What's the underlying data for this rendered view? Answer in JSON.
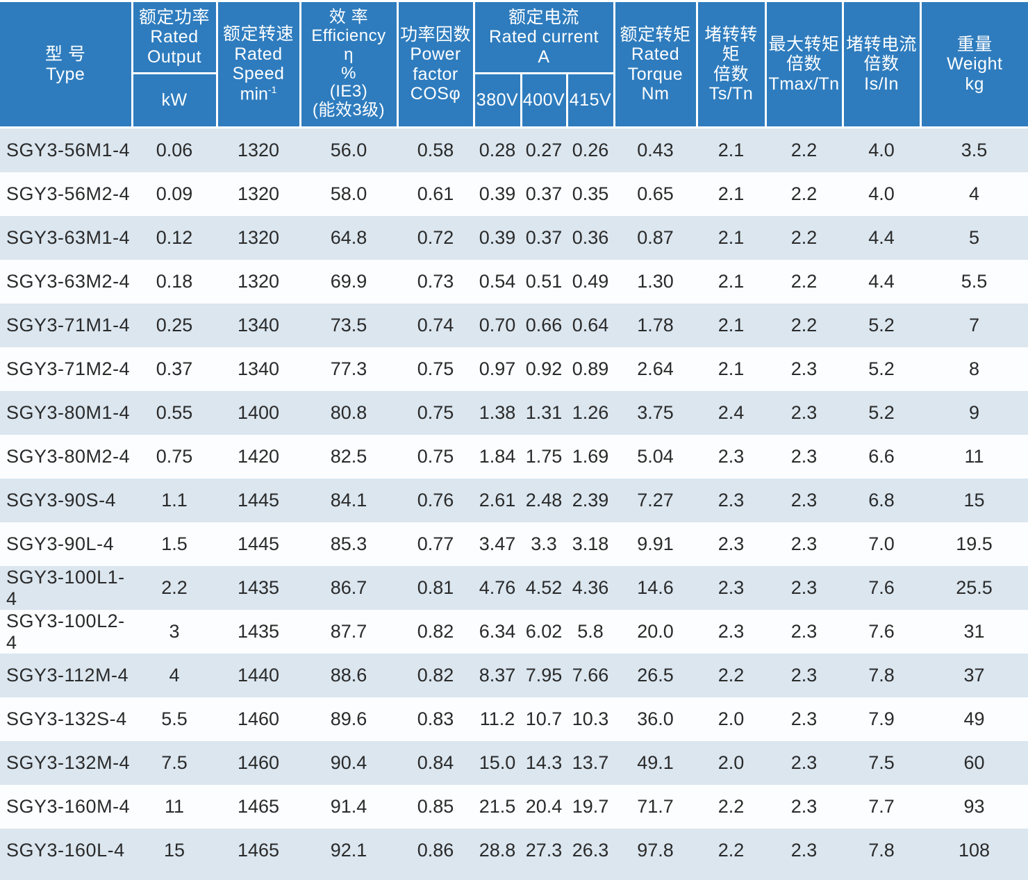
{
  "colors": {
    "header_bg": "#2e7cbe",
    "row_alt": "#dbe6ef",
    "row_base": "#fcfdfe",
    "header_text": "#ffffff",
    "cell_text": "#2a2a2a"
  },
  "table": {
    "header": {
      "type": {
        "lines": [
          "型 号",
          "Type"
        ]
      },
      "rated_output": {
        "top": [
          "额定功率",
          "Rated",
          "Output"
        ],
        "unit": "kW"
      },
      "rated_speed": {
        "lines": [
          "额定转速",
          "Rated",
          "Speed"
        ],
        "unit_base": "min",
        "unit_sup": "-1"
      },
      "efficiency": {
        "lines": [
          "效 率",
          "Efficiency",
          "η",
          "%",
          "(IE3)",
          "(能效3级)"
        ]
      },
      "power_factor": {
        "lines": [
          "功率因数",
          "Power",
          "factor",
          "COSφ"
        ]
      },
      "rated_current": {
        "top": [
          "额定电流",
          "Rated  current",
          "A"
        ],
        "voltages": [
          "380V",
          "400V",
          "415V"
        ]
      },
      "rated_torque": {
        "lines": [
          "额定转矩",
          "Rated",
          "Torque",
          "Nm"
        ]
      },
      "locked_rotor_torque": {
        "lines": [
          "堵转转矩",
          "倍数",
          "Ts/Tn"
        ]
      },
      "max_torque": {
        "lines": [
          "最大转矩",
          "倍数",
          "Tmax/Tn"
        ]
      },
      "locked_rotor_current": {
        "lines": [
          "堵转电流",
          "倍数",
          "Is/In"
        ]
      },
      "weight": {
        "lines": [
          "重量",
          "Weight",
          "kg"
        ]
      }
    },
    "rows": [
      [
        "SGY3-56M1-4",
        "0.06",
        "1320",
        "56.0",
        "0.58",
        "0.28",
        "0.27",
        "0.26",
        "0.43",
        "2.1",
        "2.2",
        "4.0",
        "3.5"
      ],
      [
        "SGY3-56M2-4",
        "0.09",
        "1320",
        "58.0",
        "0.61",
        "0.39",
        "0.37",
        "0.35",
        "0.65",
        "2.1",
        "2.2",
        "4.0",
        "4"
      ],
      [
        "SGY3-63M1-4",
        "0.12",
        "1320",
        "64.8",
        "0.72",
        "0.39",
        "0.37",
        "0.36",
        "0.87",
        "2.1",
        "2.2",
        "4.4",
        "5"
      ],
      [
        "SGY3-63M2-4",
        "0.18",
        "1320",
        "69.9",
        "0.73",
        "0.54",
        "0.51",
        "0.49",
        "1.30",
        "2.1",
        "2.2",
        "4.4",
        "5.5"
      ],
      [
        "SGY3-71M1-4",
        "0.25",
        "1340",
        "73.5",
        "0.74",
        "0.70",
        "0.66",
        "0.64",
        "1.78",
        "2.1",
        "2.2",
        "5.2",
        "7"
      ],
      [
        "SGY3-71M2-4",
        "0.37",
        "1340",
        "77.3",
        "0.75",
        "0.97",
        "0.92",
        "0.89",
        "2.64",
        "2.1",
        "2.3",
        "5.2",
        "8"
      ],
      [
        "SGY3-80M1-4",
        "0.55",
        "1400",
        "80.8",
        "0.75",
        "1.38",
        "1.31",
        "1.26",
        "3.75",
        "2.4",
        "2.3",
        "5.2",
        "9"
      ],
      [
        "SGY3-80M2-4",
        "0.75",
        "1420",
        "82.5",
        "0.75",
        "1.84",
        "1.75",
        "1.69",
        "5.04",
        "2.3",
        "2.3",
        "6.6",
        "11"
      ],
      [
        "SGY3-90S-4",
        "1.1",
        "1445",
        "84.1",
        "0.76",
        "2.61",
        "2.48",
        "2.39",
        "7.27",
        "2.3",
        "2.3",
        "6.8",
        "15"
      ],
      [
        "SGY3-90L-4",
        "1.5",
        "1445",
        "85.3",
        "0.77",
        "3.47",
        "3.3",
        "3.18",
        "9.91",
        "2.3",
        "2.3",
        "7.0",
        "19.5"
      ],
      [
        "SGY3-100L1-4",
        "2.2",
        "1435",
        "86.7",
        "0.81",
        "4.76",
        "4.52",
        "4.36",
        "14.6",
        "2.3",
        "2.3",
        "7.6",
        "25.5"
      ],
      [
        "SGY3-100L2-4",
        "3",
        "1435",
        "87.7",
        "0.82",
        "6.34",
        "6.02",
        "5.8",
        "20.0",
        "2.3",
        "2.3",
        "7.6",
        "31"
      ],
      [
        "SGY3-112M-4",
        "4",
        "1440",
        "88.6",
        "0.82",
        "8.37",
        "7.95",
        "7.66",
        "26.5",
        "2.2",
        "2.3",
        "7.8",
        "37"
      ],
      [
        "SGY3-132S-4",
        "5.5",
        "1460",
        "89.6",
        "0.83",
        "11.2",
        "10.7",
        "10.3",
        "36.0",
        "2.0",
        "2.3",
        "7.9",
        "49"
      ],
      [
        "SGY3-132M-4",
        "7.5",
        "1460",
        "90.4",
        "0.84",
        "15.0",
        "14.3",
        "13.7",
        "49.1",
        "2.0",
        "2.3",
        "7.5",
        "60"
      ],
      [
        "SGY3-160M-4",
        "11",
        "1465",
        "91.4",
        "0.85",
        "21.5",
        "20.4",
        "19.7",
        "71.7",
        "2.2",
        "2.3",
        "7.7",
        "93"
      ],
      [
        "SGY3-160L-4",
        "15",
        "1465",
        "92.1",
        "0.86",
        "28.8",
        "27.3",
        "26.3",
        "97.8",
        "2.2",
        "2.3",
        "7.8",
        "108"
      ]
    ]
  }
}
